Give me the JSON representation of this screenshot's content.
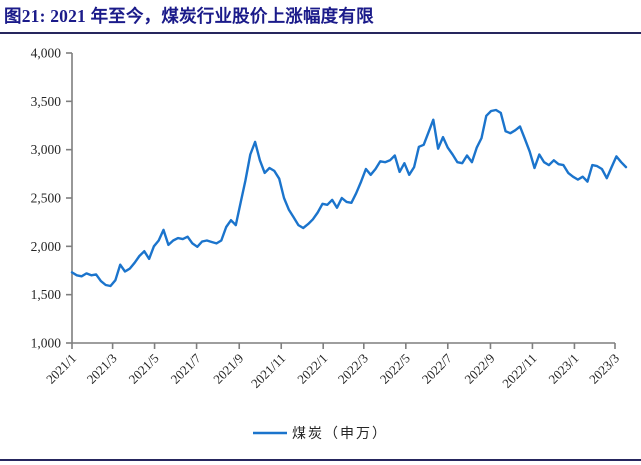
{
  "header": {
    "title": "图21:  2021 年至今，煤炭行业股价上涨幅度有限"
  },
  "colors": {
    "title_navy": "#1b1b8a",
    "rule_navy": "#26265e",
    "series_blue": "#1b74cc",
    "axis_gray": "#7f7f7f",
    "label_dark": "#262626"
  },
  "legend": {
    "coal_label": "煤炭（申万）"
  },
  "chart_data": {
    "type": "line",
    "title": "",
    "xlabel": "",
    "ylabel": "",
    "ylim": [
      1000,
      4000
    ],
    "grid": false,
    "legend_position": "bottom-center",
    "yticks": {
      "values": [
        4000,
        3500,
        3000,
        2500,
        2000,
        1500,
        1000
      ],
      "labels": [
        "4,000",
        "3,500",
        "3,000",
        "2,500",
        "2,000",
        "1,500",
        "1,000"
      ]
    },
    "xticks": {
      "labels": [
        "2021/1",
        "2021/3",
        "2021/5",
        "2021/7",
        "2021/9",
        "2021/11",
        "2022/1",
        "2022/3",
        "2022/5",
        "2022/7",
        "2022/9",
        "2022/11",
        "2023/1",
        "2023/3"
      ],
      "week_positions": [
        0,
        8.43,
        17.14,
        25.86,
        34.71,
        43.43,
        52.14,
        60.57,
        69.29,
        78.0,
        86.86,
        95.57,
        104.29,
        112.71
      ]
    },
    "x_unit": "weeks since 2021/1",
    "series": [
      {
        "name": "煤炭（申万）",
        "color": "#1b74cc",
        "values": [
          1730,
          1700,
          1690,
          1720,
          1700,
          1710,
          1640,
          1600,
          1590,
          1650,
          1810,
          1740,
          1770,
          1830,
          1900,
          1950,
          1870,
          2000,
          2060,
          2170,
          2015,
          2060,
          2085,
          2075,
          2100,
          2030,
          1995,
          2050,
          2060,
          2045,
          2030,
          2060,
          2200,
          2270,
          2220,
          2450,
          2680,
          2950,
          3080,
          2890,
          2760,
          2810,
          2780,
          2700,
          2500,
          2380,
          2300,
          2220,
          2190,
          2230,
          2280,
          2350,
          2440,
          2430,
          2480,
          2400,
          2500,
          2460,
          2450,
          2550,
          2670,
          2800,
          2740,
          2800,
          2880,
          2870,
          2890,
          2940,
          2770,
          2860,
          2740,
          2820,
          3030,
          3050,
          3180,
          3310,
          3010,
          3130,
          3020,
          2950,
          2870,
          2860,
          2940,
          2870,
          3020,
          3120,
          3350,
          3400,
          3410,
          3380,
          3190,
          3170,
          3200,
          3240,
          3110,
          2980,
          2810,
          2950,
          2870,
          2840,
          2890,
          2850,
          2840,
          2760,
          2720,
          2690,
          2720,
          2670,
          2840,
          2830,
          2800,
          2705,
          2820,
          2930,
          2870,
          2820
        ]
      }
    ]
  }
}
